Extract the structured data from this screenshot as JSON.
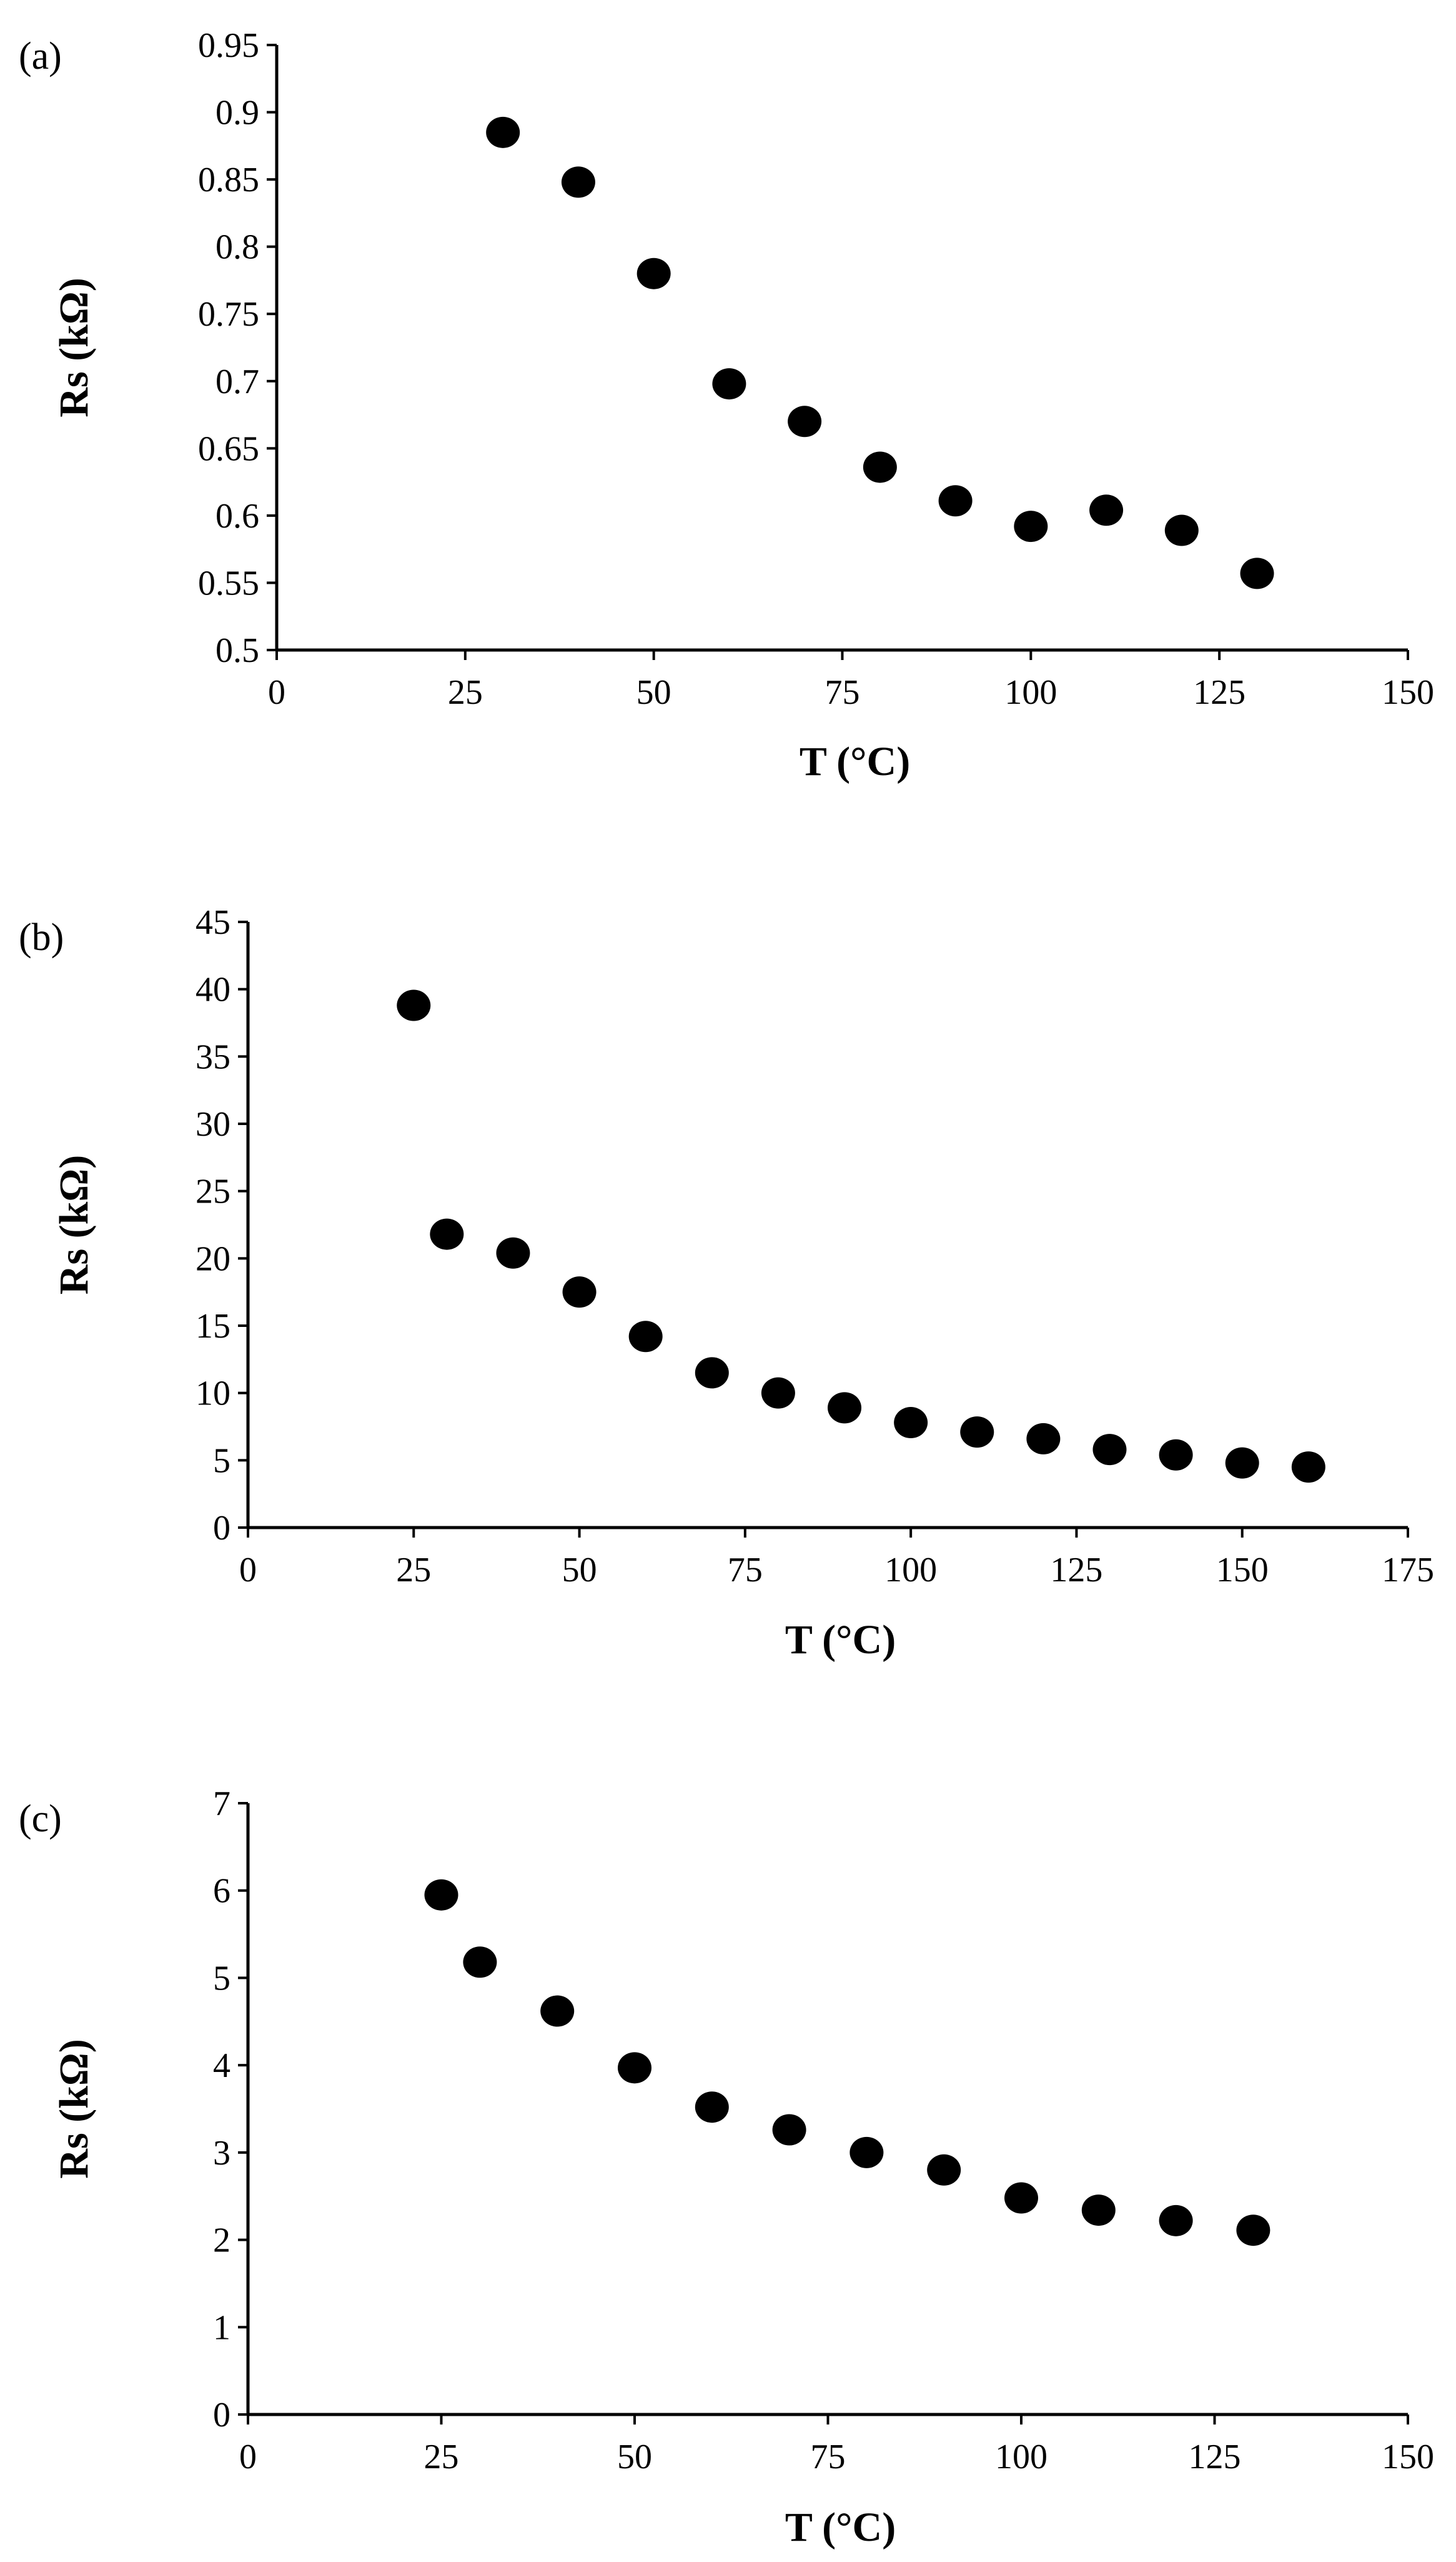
{
  "chart_data": [
    {
      "type": "scatter",
      "panel_label": "(a)",
      "xlabel": "T  (°C)",
      "ylabel": "Rs (kΩ)",
      "xlim": [
        0,
        150
      ],
      "ylim": [
        0.5,
        0.95
      ],
      "xticks": [
        "0",
        "25",
        "50",
        "75",
        "100",
        "125",
        "150"
      ],
      "yticks": [
        "0.5",
        "0.55",
        "0.6",
        "0.65",
        "0.7",
        "0.75",
        "0.8",
        "0.85",
        "0.9",
        "0.95"
      ],
      "grid": false,
      "marker_color": "#000000",
      "points": [
        {
          "x": 30,
          "y": 0.885
        },
        {
          "x": 40,
          "y": 0.848
        },
        {
          "x": 50,
          "y": 0.78
        },
        {
          "x": 60,
          "y": 0.698
        },
        {
          "x": 70,
          "y": 0.67
        },
        {
          "x": 80,
          "y": 0.636
        },
        {
          "x": 90,
          "y": 0.611
        },
        {
          "x": 100,
          "y": 0.592
        },
        {
          "x": 110,
          "y": 0.604
        },
        {
          "x": 120,
          "y": 0.589
        },
        {
          "x": 130,
          "y": 0.557
        }
      ]
    },
    {
      "type": "scatter",
      "panel_label": "(b)",
      "xlabel": "T  (°C)",
      "ylabel": "Rs (kΩ)",
      "xlim": [
        0,
        175
      ],
      "ylim": [
        0,
        45
      ],
      "xticks": [
        "0",
        "25",
        "50",
        "75",
        "100",
        "125",
        "150",
        "175"
      ],
      "yticks": [
        "0",
        "5",
        "10",
        "15",
        "20",
        "25",
        "30",
        "35",
        "40",
        "45"
      ],
      "grid": false,
      "marker_color": "#000000",
      "points": [
        {
          "x": 25,
          "y": 38.8
        },
        {
          "x": 30,
          "y": 21.8
        },
        {
          "x": 40,
          "y": 20.4
        },
        {
          "x": 50,
          "y": 17.5
        },
        {
          "x": 60,
          "y": 14.2
        },
        {
          "x": 70,
          "y": 11.5
        },
        {
          "x": 80,
          "y": 10.0
        },
        {
          "x": 90,
          "y": 8.9
        },
        {
          "x": 100,
          "y": 7.8
        },
        {
          "x": 110,
          "y": 7.1
        },
        {
          "x": 120,
          "y": 6.6
        },
        {
          "x": 130,
          "y": 5.8
        },
        {
          "x": 140,
          "y": 5.4
        },
        {
          "x": 150,
          "y": 4.8
        },
        {
          "x": 160,
          "y": 4.5
        }
      ]
    },
    {
      "type": "scatter",
      "panel_label": "(c)",
      "xlabel": "T  (°C)",
      "ylabel": "Rs (kΩ)",
      "xlim": [
        0,
        150
      ],
      "ylim": [
        0,
        7
      ],
      "xticks": [
        "0",
        "25",
        "50",
        "75",
        "100",
        "125",
        "150"
      ],
      "yticks": [
        "0",
        "1",
        "2",
        "3",
        "4",
        "5",
        "6",
        "7"
      ],
      "grid": false,
      "marker_color": "#000000",
      "points": [
        {
          "x": 25,
          "y": 5.95
        },
        {
          "x": 30,
          "y": 5.18
        },
        {
          "x": 40,
          "y": 4.62
        },
        {
          "x": 50,
          "y": 3.97
        },
        {
          "x": 60,
          "y": 3.52
        },
        {
          "x": 70,
          "y": 3.26
        },
        {
          "x": 80,
          "y": 3.0
        },
        {
          "x": 90,
          "y": 2.8
        },
        {
          "x": 100,
          "y": 2.48
        },
        {
          "x": 110,
          "y": 2.34
        },
        {
          "x": 120,
          "y": 2.22
        },
        {
          "x": 130,
          "y": 2.11
        }
      ]
    }
  ]
}
